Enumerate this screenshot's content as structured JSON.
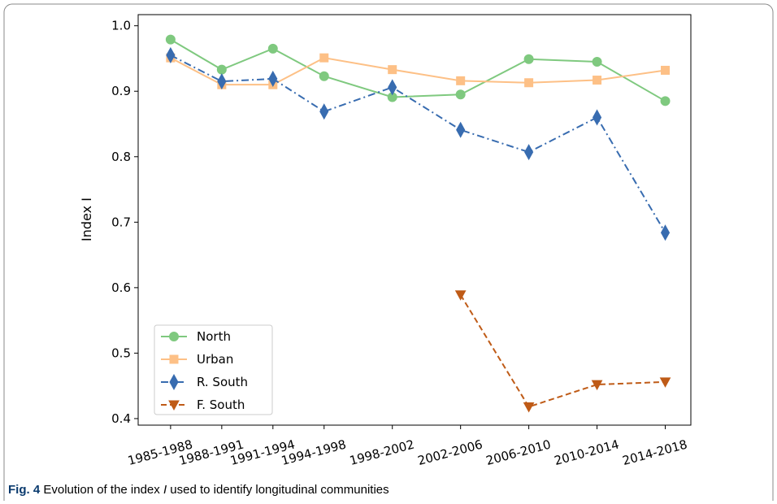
{
  "chart_data": {
    "type": "line",
    "ylabel": "Index I",
    "x": [
      1985,
      1988,
      1991,
      1994,
      1998,
      2002,
      2006,
      2010,
      2014
    ],
    "xlim": [
      1983.1,
      2015.5
    ],
    "xticks": [
      {
        "value": 1985,
        "label": "1985-1988"
      },
      {
        "value": 1988,
        "label": "1988-1991"
      },
      {
        "value": 1991,
        "label": "1991-1994"
      },
      {
        "value": 1994,
        "label": "1994-1998"
      },
      {
        "value": 1998,
        "label": "1998-2002"
      },
      {
        "value": 2002,
        "label": "2002-2006"
      },
      {
        "value": 2006,
        "label": "2006-2010"
      },
      {
        "value": 2010,
        "label": "2010-2014"
      },
      {
        "value": 2014,
        "label": "2014-2018"
      }
    ],
    "ylim": [
      0.39,
      1.017
    ],
    "yticks": [
      {
        "value": 0.4,
        "label": "0.4"
      },
      {
        "value": 0.5,
        "label": "0.5"
      },
      {
        "value": 0.6,
        "label": "0.6"
      },
      {
        "value": 0.7,
        "label": "0.7"
      },
      {
        "value": 0.8,
        "label": "0.8"
      },
      {
        "value": 0.9,
        "label": "0.9"
      },
      {
        "value": 1.0,
        "label": "1.0"
      }
    ],
    "legend": "lower left",
    "series": [
      {
        "name": "North",
        "color": "#7fc97f",
        "marker": "circle",
        "dash": "solid",
        "values": [
          0.979,
          0.933,
          0.965,
          0.923,
          0.891,
          0.895,
          0.949,
          0.945,
          0.885
        ]
      },
      {
        "name": "Urban",
        "color": "#fdc086",
        "marker": "square",
        "dash": "solid",
        "values": [
          0.951,
          0.91,
          0.91,
          0.951,
          0.933,
          0.916,
          0.913,
          0.917,
          0.932
        ]
      },
      {
        "name": "R. South",
        "color": "#386cb0",
        "marker": "diamond",
        "dash": "dashdot",
        "values": [
          0.955,
          0.915,
          0.919,
          0.869,
          0.906,
          0.841,
          0.807,
          0.86,
          0.684
        ]
      },
      {
        "name": "F. South",
        "color": "#bf5b17",
        "marker": "triangle-down",
        "dash": "dashed",
        "values": [
          null,
          null,
          null,
          null,
          null,
          0.589,
          0.418,
          0.452,
          0.456
        ]
      }
    ]
  },
  "caption": {
    "label": "Fig. 4",
    "before": "Evolution of the index",
    "symbol": "I",
    "after": "used to identify longitudinal communities"
  }
}
